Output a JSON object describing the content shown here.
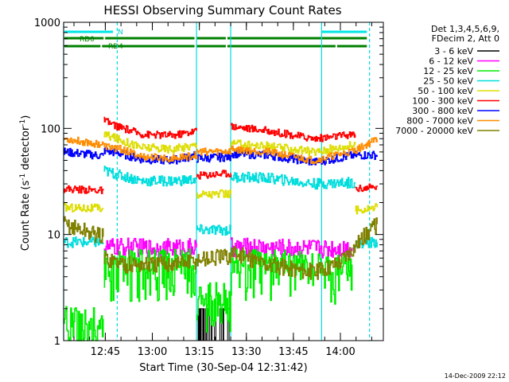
{
  "chart_data": {
    "type": "line",
    "title": "HESSI Observing Summary Count Rates",
    "xlabel": "Start Time (30-Sep-04 12:31:42)",
    "ylabel_main": "Count Rate (s",
    "ylabel_sup1": "-1",
    "ylabel_mid": " detector",
    "ylabel_sup2": "-1",
    "ylabel_end": ")",
    "yscale": "log",
    "ylim": [
      1,
      1000
    ],
    "xlim_minutes": [
      0,
      102
    ],
    "x_ticks": [
      {
        "min": 13.3,
        "label": "12:45"
      },
      {
        "min": 28.3,
        "label": "13:00"
      },
      {
        "min": 43.3,
        "label": "13:15"
      },
      {
        "min": 58.3,
        "label": "13:30"
      },
      {
        "min": 73.3,
        "label": "13:45"
      },
      {
        "min": 88.3,
        "label": "14:00"
      }
    ],
    "y_ticks": [
      {
        "v": 1,
        "label": "1"
      },
      {
        "v": 10,
        "label": "10"
      },
      {
        "v": 100,
        "label": "100"
      },
      {
        "v": 1000,
        "label": "1000"
      }
    ],
    "legend_header": [
      "Det 1,3,4,5,6,9,",
      "FDecim 2, Att 0"
    ],
    "timestamp": "14-Dec-2009 22:12",
    "flags": {
      "N_label": "N",
      "RD0_label": "RD0",
      "RD4_label": "RD4",
      "N": [
        [
          0,
          16
        ],
        [
          82,
          97
        ]
      ],
      "RD0": [
        [
          0,
          13
        ],
        [
          13,
          42
        ],
        [
          42,
          52
        ],
        [
          52,
          97
        ]
      ],
      "RD4": [
        [
          0,
          12
        ],
        [
          12,
          42
        ],
        [
          42,
          52
        ],
        [
          52,
          87
        ],
        [
          87,
          97
        ]
      ]
    },
    "vlines_solid_min": [
      0,
      42.4,
      53.3,
      82.3
    ],
    "vlines_dashed_min": [
      17.1,
      97.6
    ],
    "series": [
      {
        "name": "3 - 6 keV",
        "color": "#000000",
        "segments": [
          [
            [
              42.4,
              1
            ],
            [
              53.3,
              1
            ]
          ]
        ]
      },
      {
        "name": "6 - 12 keV",
        "color": "#ff00ff",
        "segments": [
          [
            [
              12.8,
              7.5
            ],
            [
              20,
              7.6
            ],
            [
              30,
              7.4
            ],
            [
              42.4,
              7.5
            ]
          ],
          [
            [
              53.3,
              7.6
            ],
            [
              65,
              7.5
            ],
            [
              82.3,
              7.4
            ],
            [
              92,
              7.5
            ]
          ]
        ]
      },
      {
        "name": "12 - 25 keV",
        "color": "#00ee00",
        "segments": [
          [
            [
              0,
              1.6
            ],
            [
              12.6,
              1.6
            ]
          ],
          [
            [
              12.8,
              5.6
            ],
            [
              30,
              5.5
            ],
            [
              42.4,
              5.6
            ]
          ],
          [
            [
              42.4,
              2.8
            ],
            [
              53.3,
              2.8
            ]
          ],
          [
            [
              53.3,
              5.6
            ],
            [
              80,
              5.4
            ],
            [
              92,
              5.2
            ]
          ]
        ]
      },
      {
        "name": "25 - 50 keV",
        "color": "#00dddd",
        "segments": [
          [
            [
              0,
              8.5
            ],
            [
              12.6,
              8.4
            ]
          ],
          [
            [
              12.8,
              40
            ],
            [
              18,
              36
            ],
            [
              25,
              32
            ],
            [
              35,
              32
            ],
            [
              42.4,
              33
            ]
          ],
          [
            [
              42.4,
              11
            ],
            [
              53.3,
              11
            ]
          ],
          [
            [
              53.3,
              35
            ],
            [
              65,
              34
            ],
            [
              80,
              30
            ],
            [
              93,
              31
            ]
          ],
          [
            [
              93,
              8.2
            ],
            [
              100,
              8.5
            ]
          ]
        ]
      },
      {
        "name": "50 - 100 keV",
        "color": "#dddd00",
        "segments": [
          [
            [
              0,
              18
            ],
            [
              12.6,
              17.5
            ]
          ],
          [
            [
              12.8,
              88
            ],
            [
              18,
              78
            ],
            [
              25,
              66
            ],
            [
              35,
              64
            ],
            [
              42.4,
              70
            ]
          ],
          [
            [
              42.4,
              24
            ],
            [
              53.3,
              24
            ]
          ],
          [
            [
              53.3,
              72
            ],
            [
              65,
              68
            ],
            [
              80,
              60
            ],
            [
              93,
              70
            ]
          ],
          [
            [
              93,
              17
            ],
            [
              100,
              18
            ]
          ]
        ]
      },
      {
        "name": "100 - 300 keV",
        "color": "#ff0000",
        "segments": [
          [
            [
              0,
              27
            ],
            [
              12.6,
              26
            ]
          ],
          [
            [
              12.8,
              118
            ],
            [
              18,
              102
            ],
            [
              25,
              88
            ],
            [
              35,
              86
            ],
            [
              42.4,
              95
            ]
          ],
          [
            [
              42.4,
              36
            ],
            [
              53.3,
              38
            ]
          ],
          [
            [
              53.3,
              105
            ],
            [
              65,
              95
            ],
            [
              80,
              80
            ],
            [
              93,
              88
            ]
          ],
          [
            [
              93,
              27
            ],
            [
              100,
              28
            ]
          ]
        ]
      },
      {
        "name": "300 - 800 keV",
        "color": "#0000ff",
        "segments": [
          [
            [
              0,
              60
            ],
            [
              12.6,
              55
            ]
          ],
          [
            [
              12.8,
              62
            ],
            [
              18,
              58
            ],
            [
              25,
              51
            ],
            [
              35,
              50
            ],
            [
              42.4,
              56
            ]
          ],
          [
            [
              42.4,
              52
            ],
            [
              53.3,
              54
            ]
          ],
          [
            [
              53.3,
              58
            ],
            [
              65,
              56
            ],
            [
              80,
              48
            ],
            [
              93,
              56
            ],
            [
              100,
              56
            ]
          ]
        ]
      },
      {
        "name": "800 - 7000 keV",
        "color": "#ff8c00",
        "segments": [
          [
            [
              0,
              80
            ],
            [
              12.6,
              70
            ]
          ],
          [
            [
              12.8,
              68
            ],
            [
              18,
              64
            ],
            [
              25,
              54
            ],
            [
              35,
              52
            ],
            [
              42.4,
              56
            ]
          ],
          [
            [
              42.4,
              60
            ],
            [
              53.3,
              61
            ]
          ],
          [
            [
              53.3,
              64
            ],
            [
              65,
              60
            ],
            [
              80,
              50
            ],
            [
              93,
              62
            ],
            [
              100,
              80
            ]
          ]
        ]
      },
      {
        "name": "7000 - 20000 keV",
        "color": "#808000",
        "segments": [
          [
            [
              0,
              12.5
            ],
            [
              12.6,
              9.5
            ]
          ],
          [
            [
              12.8,
              6
            ],
            [
              20,
              5.2
            ],
            [
              30,
              5.2
            ],
            [
              42.4,
              5.6
            ]
          ],
          [
            [
              42.4,
              5.8
            ],
            [
              53.3,
              6.2
            ]
          ],
          [
            [
              53.3,
              6.8
            ],
            [
              65,
              5.2
            ],
            [
              80,
              4.4
            ],
            [
              88,
              5.5
            ],
            [
              94,
              8.5
            ],
            [
              100,
              12.5
            ]
          ]
        ]
      }
    ]
  }
}
